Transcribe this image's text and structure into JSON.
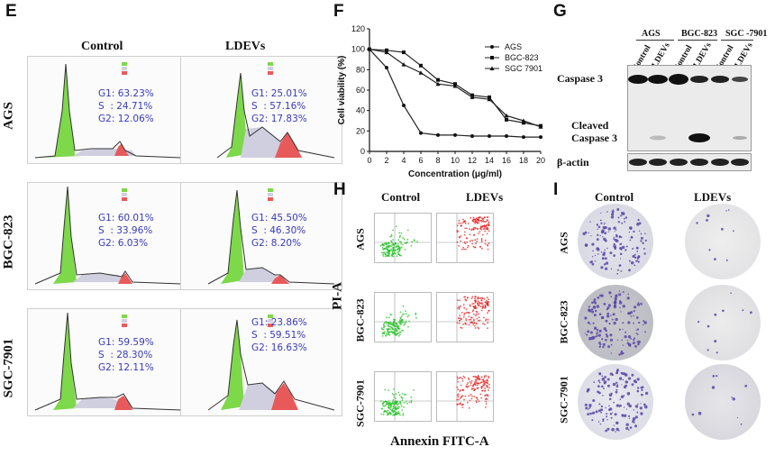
{
  "panel_e": {
    "letter": "E",
    "col_control": "Control",
    "col_ldevs": "LDEVs",
    "rows": [
      {
        "label": "AGS",
        "control": {
          "g1": "G1: 63.23%",
          "s": "S  : 24.71%",
          "g2": "G2: 12.06%"
        },
        "ldevs": {
          "g1": "G1: 25.01%",
          "s": "S  : 57.16%",
          "g2": "G2: 17.83%"
        }
      },
      {
        "label": "BGC-823",
        "control": {
          "g1": "G1: 60.01%",
          "s": "S  : 33.96%",
          "g2": "G2: 6.03%"
        },
        "ldevs": {
          "g1": "G1: 45.50%",
          "s": "S  : 46.30%",
          "g2": "G2: 8.20%"
        }
      },
      {
        "label": "SGC-7901",
        "control": {
          "g1": "G1: 59.59%",
          "s": "S  : 28.30%",
          "g2": "G2: 12.11%"
        },
        "ldevs": {
          "g1": "G1: 23.86%",
          "s": "S  : 59.51%",
          "g2": "G2: 16.63%"
        }
      }
    ]
  },
  "panel_f": {
    "letter": "F"
  },
  "chart_data": {
    "type": "line",
    "title": "",
    "xlabel": "Concentration (μg/ml)",
    "ylabel": "Cell viability (%)",
    "x": [
      0,
      2,
      4,
      6,
      8,
      10,
      12,
      14,
      16,
      18,
      20
    ],
    "xticks": [
      "0",
      "2",
      "4",
      "6",
      "8",
      "10",
      "12",
      "14",
      "16",
      "18",
      "20"
    ],
    "yticks": [
      "0",
      "20",
      "40",
      "60",
      "80",
      "100",
      "120"
    ],
    "xlim": [
      0,
      20
    ],
    "ylim": [
      0,
      120
    ],
    "legend_position": "top-right",
    "series": [
      {
        "name": "AGS",
        "values": [
          100,
          82,
          45,
          18,
          16,
          16,
          15,
          15,
          15,
          14,
          14
        ]
      },
      {
        "name": "BGC-823",
        "values": [
          100,
          99,
          97,
          84,
          70,
          66,
          55,
          53,
          31,
          28,
          25
        ]
      },
      {
        "name": "SGC 7901",
        "values": [
          100,
          97,
          85,
          77,
          66,
          64,
          53,
          51,
          35,
          30,
          24
        ]
      }
    ]
  },
  "panel_g": {
    "letter": "G",
    "cell_lines": [
      "AGS",
      "BGC-823",
      "SGC -7901"
    ],
    "lanes": [
      "Control",
      "LDEVs",
      "Control",
      "LDEVs",
      "Control",
      "LDEVs"
    ],
    "bands": [
      "Caspase 3",
      "Cleaved",
      "Caspase 3",
      "β-actin"
    ]
  },
  "panel_h": {
    "letter": "H",
    "col_control": "Control",
    "col_ldevs": "LDEVs",
    "y_title": "PI-A",
    "x_title": "Annexin FITC-A",
    "rows": [
      "AGS",
      "BGC-823",
      "SGC-7901"
    ]
  },
  "panel_i": {
    "letter": "I",
    "col_control": "Control",
    "col_ldevs": "LDEVs",
    "rows": [
      "AGS",
      "BGC-823",
      "SGC-7901"
    ]
  },
  "colors": {
    "stat_text": "#3a3ab8",
    "g1_fill": "#7dd84a",
    "s_fill": "#cfcfe0",
    "g2_fill": "#e85a5a",
    "facs_control": "#22c022",
    "facs_ldevs": "#e02020",
    "colony": "#5b46a8"
  }
}
